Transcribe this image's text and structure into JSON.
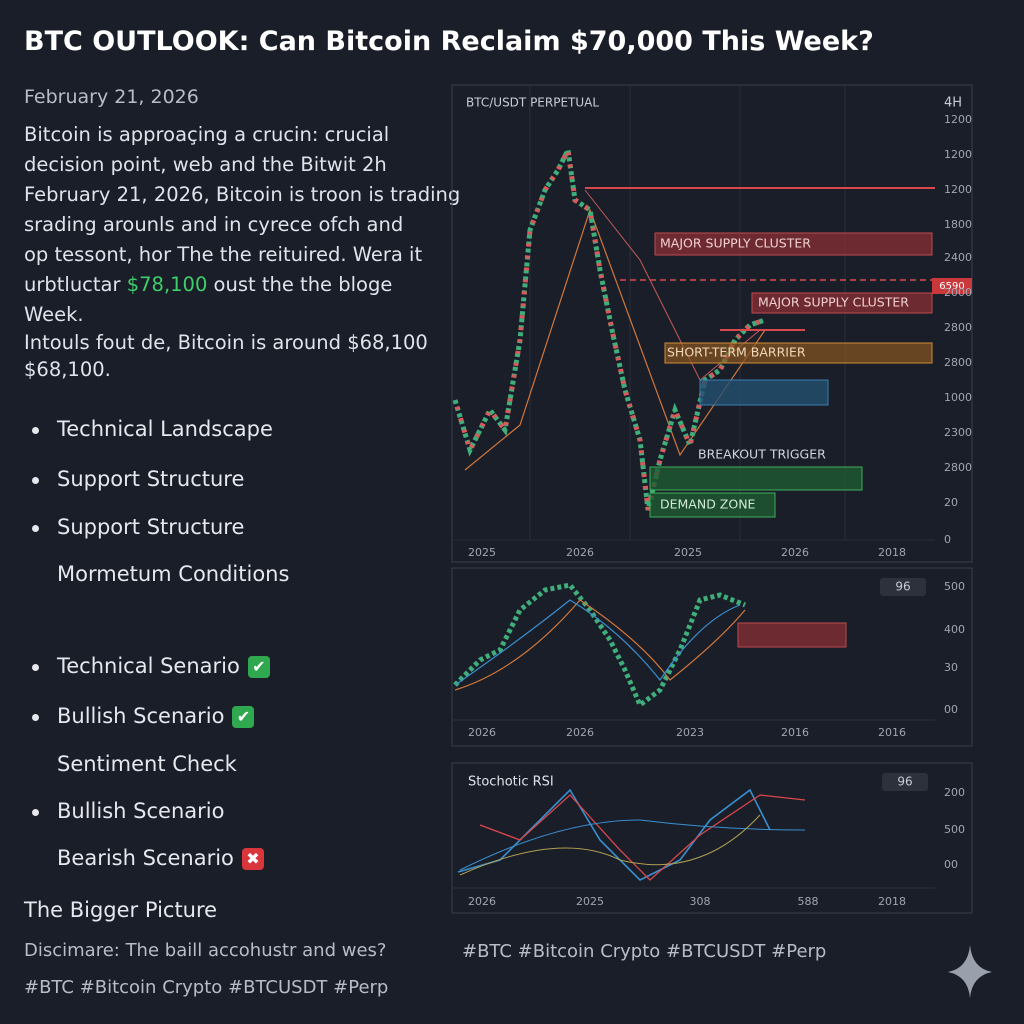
{
  "header": {
    "title": "BTC OUTLOOK: Can Bitcoin Reclaim $70,000 This Week?",
    "date": "February 21, 2026"
  },
  "intro": {
    "lines": [
      "Bitcoin is approaçing a crucin: crucial",
      "decision point, web and the Bitwit 2h",
      "February 21, 2026, Bitcoin is troon is trading",
      "srading arounls and in cyrece ofch and",
      "op tessont, hor The the reituired. Wera it"
    ],
    "highlight_line": [
      "urbtluctar ",
      "$78,100",
      " oust the the bloge"
    ],
    "last_line": "Week.",
    "second": [
      "Intouls fout de, Bitcoin is around $68,100",
      "$68,100."
    ]
  },
  "list": [
    {
      "text": "Technical Landscape",
      "bullet": true
    },
    {
      "text": "Support Structure",
      "bullet": true
    },
    {
      "text": "Support Structure",
      "bullet": true
    },
    {
      "text": "Mormetum Conditions",
      "bullet": false
    },
    {
      "text": "Technical Senario",
      "bullet": true,
      "icon": "check"
    },
    {
      "text": "Bullish Scenario",
      "bullet": true,
      "icon": "check"
    },
    {
      "text": "Sentiment Check",
      "bullet": false
    },
    {
      "text": "Bullish Scenario",
      "bullet": true
    },
    {
      "text": "Bearish Scenario",
      "bullet": false,
      "icon": "cross"
    }
  ],
  "footer": {
    "heading": "The Bigger Picture",
    "disclaimer": "Discimare: The baill accohustr and wes?",
    "tags": "#BTC #Bitcoin Crypto #BTCUSDT #Perp",
    "right_tags": "#BTC #Bitcoin Crypto #BTCUSDT #Perp"
  },
  "main_panel": {
    "label": "BTC/USDT PERPETUAL",
    "timeframe": "4H",
    "price_tag": "6590",
    "y_labels": [
      "1200",
      "1200",
      "1200",
      "1800",
      "2400",
      "2000",
      "2800",
      "2800",
      "1000",
      "2300",
      "2800",
      "20",
      "0"
    ],
    "x_labels": [
      "2025",
      "2026",
      "2025",
      "2026",
      "2018"
    ],
    "annotations": [
      "MAJOR SUPPLY CLUSTER",
      "MAJOR SUPPLY CLUSTER",
      "SHORT-TERM BARRIER",
      "BREAKOUT TRIGGER",
      "DEMAND ZONE"
    ]
  },
  "panel2": {
    "badge": "96",
    "y_labels": [
      "500",
      "400",
      "30",
      "00"
    ],
    "x_labels": [
      "2026",
      "2026",
      "2023",
      "2016",
      "2016"
    ]
  },
  "panel3": {
    "title": "Stochotic RSI",
    "badge": "96",
    "y_labels": [
      "200",
      "500",
      "00"
    ],
    "x_labels": [
      "2026",
      "2025",
      "308",
      "588",
      "2018"
    ]
  }
}
